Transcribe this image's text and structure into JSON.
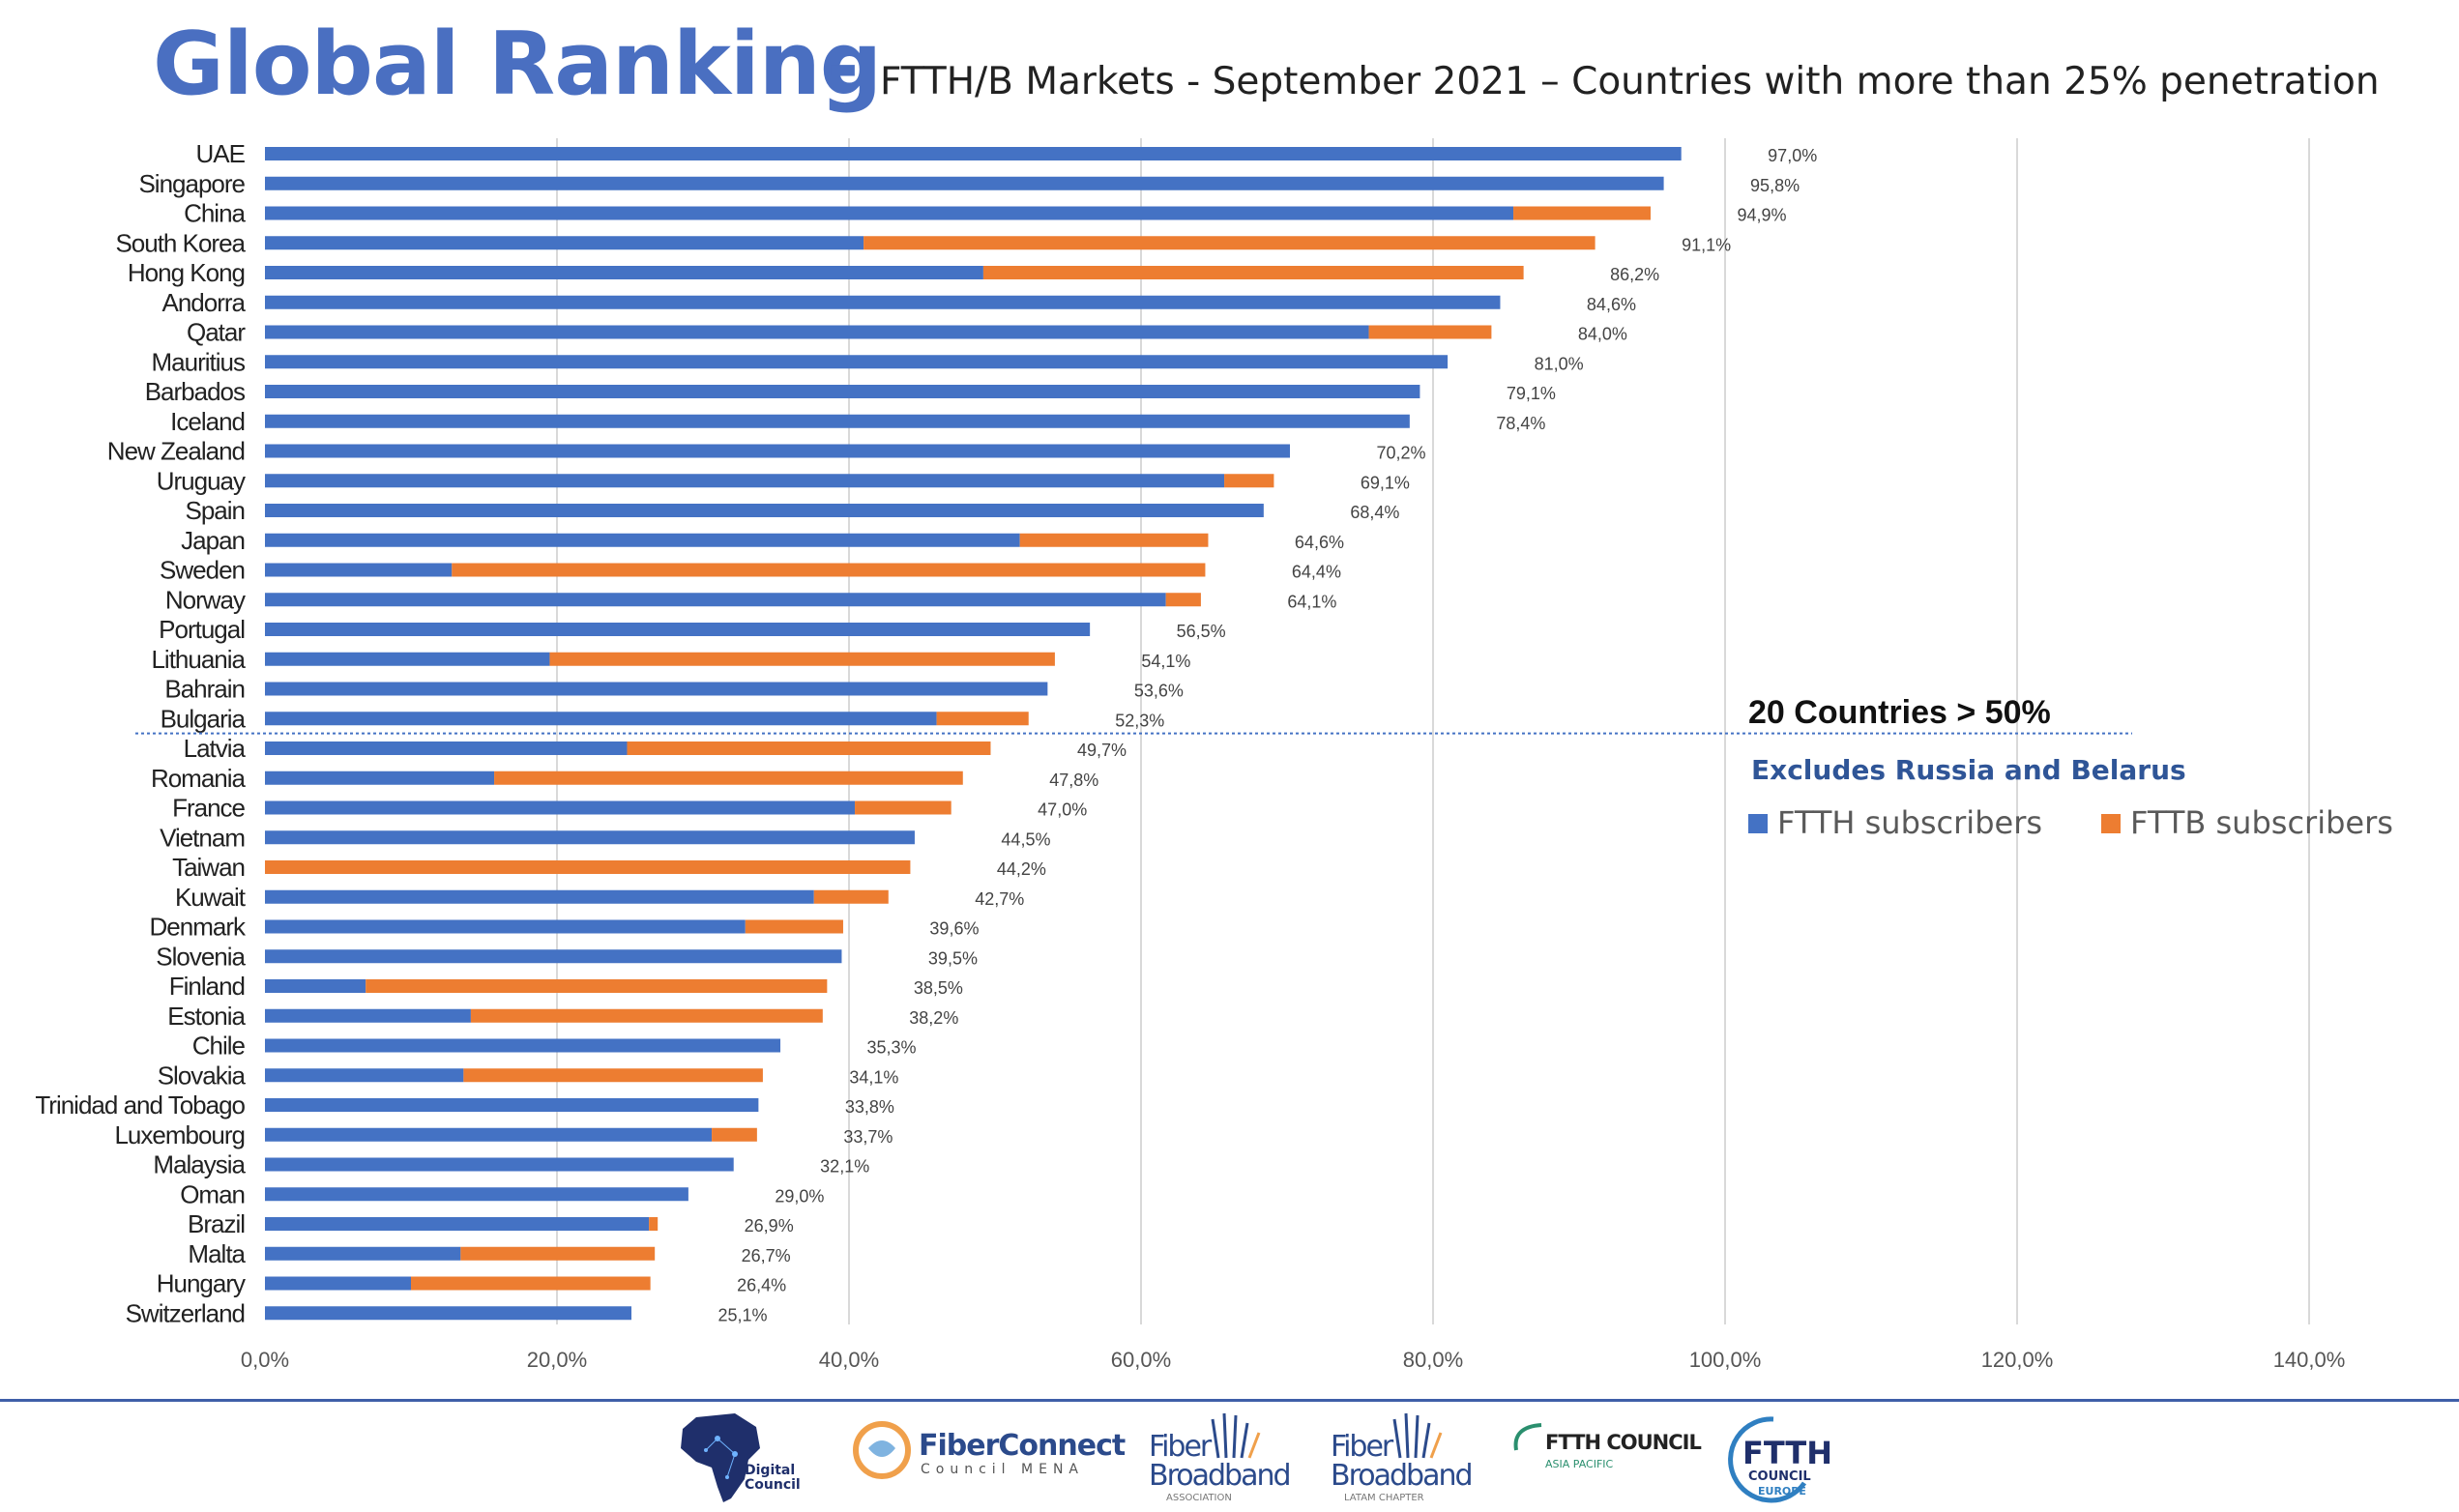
{
  "title": {
    "main": "Global Ranking",
    "separator": "-",
    "subtitle": "FTTH/B Markets - September 2021 – Countries with more than 25% penetration"
  },
  "colors": {
    "ftth": "#4472c4",
    "fttb": "#ed7d31",
    "title": "#4a6fc1",
    "annotation": "#2f5597",
    "grid": "#d9d9d9"
  },
  "chart_data": {
    "type": "bar",
    "orientation": "horizontal",
    "stacked": true,
    "title": "Global Ranking - FTTH/B Markets - September 2021 – Countries with more than 25% penetration",
    "xlim": [
      0,
      140
    ],
    "x_ticks": [
      "0,0%",
      "20,0%",
      "40,0%",
      "60,0%",
      "80,0%",
      "100,0%",
      "120,0%",
      "140,0%"
    ],
    "x_tick_values": [
      0,
      20,
      40,
      60,
      80,
      100,
      120,
      140
    ],
    "grid": "vertical",
    "legend_placement": "right",
    "categories": [
      "UAE",
      "Singapore",
      "China",
      "South Korea",
      "Hong Kong",
      "Andorra",
      "Qatar",
      "Mauritius",
      "Barbados",
      "Iceland",
      "New Zealand",
      "Uruguay",
      "Spain",
      "Japan",
      "Sweden",
      "Norway",
      "Portugal",
      "Lithuania",
      "Bahrain",
      "Bulgaria",
      "Latvia",
      "Romania",
      "France",
      "Vietnam",
      "Taiwan",
      "Kuwait",
      "Denmark",
      "Slovenia",
      "Finland",
      "Estonia",
      "Chile",
      "Slovakia",
      "Trinidad and Tobago",
      "Luxembourg",
      "Malaysia",
      "Oman",
      "Brazil",
      "Malta",
      "Hungary",
      "Switzerland"
    ],
    "series": [
      {
        "name": "FTTH subscribers",
        "values": [
          97.0,
          95.8,
          85.5,
          41.0,
          49.2,
          84.6,
          75.6,
          81.0,
          79.1,
          78.4,
          70.2,
          65.7,
          68.4,
          51.7,
          12.8,
          61.7,
          56.5,
          19.5,
          53.6,
          46.0,
          24.8,
          15.7,
          40.4,
          44.5,
          0.0,
          37.6,
          32.9,
          39.5,
          6.9,
          14.1,
          35.3,
          13.6,
          33.8,
          30.6,
          32.1,
          29.0,
          26.3,
          13.4,
          10.0,
          25.1
        ]
      },
      {
        "name": "FTTB subscribers",
        "values": [
          0.0,
          0.0,
          9.4,
          50.1,
          37.0,
          0.0,
          8.4,
          0.0,
          0.0,
          0.0,
          0.0,
          3.4,
          0.0,
          12.9,
          51.6,
          2.4,
          0.0,
          34.6,
          0.0,
          6.3,
          24.9,
          32.1,
          6.6,
          0.0,
          44.2,
          5.1,
          6.7,
          0.0,
          31.6,
          24.1,
          0.0,
          20.5,
          0.0,
          3.1,
          0.0,
          0.0,
          0.6,
          13.3,
          16.4,
          0.0
        ]
      }
    ],
    "totals": [
      97.0,
      95.8,
      94.9,
      91.1,
      86.2,
      84.6,
      84.0,
      81.0,
      79.1,
      78.4,
      70.2,
      69.1,
      68.4,
      64.6,
      64.4,
      64.1,
      56.5,
      54.1,
      53.6,
      52.3,
      49.7,
      47.8,
      47.0,
      44.5,
      44.2,
      42.7,
      39.6,
      39.5,
      38.5,
      38.2,
      35.3,
      34.1,
      33.8,
      33.7,
      32.1,
      29.0,
      26.9,
      26.7,
      26.4,
      25.1
    ],
    "data_labels": [
      "97,0%",
      "95,8%",
      "94,9%",
      "91,1%",
      "86,2%",
      "84,6%",
      "84,0%",
      "81,0%",
      "79,1%",
      "78,4%",
      "70,2%",
      "69,1%",
      "68,4%",
      "64,6%",
      "64,4%",
      "64,1%",
      "56,5%",
      "54,1%",
      "53,6%",
      "52,3%",
      "49,7%",
      "47,8%",
      "47,0%",
      "44,5%",
      "44,2%",
      "42,7%",
      "39,6%",
      "39,5%",
      "38,5%",
      "38,2%",
      "35,3%",
      "34,1%",
      "33,8%",
      "33,7%",
      "32,1%",
      "29,0%",
      "26,9%",
      "26,7%",
      "26,4%",
      "25,1%"
    ],
    "divider_after_index": 19,
    "annotations": {
      "count": "20 Countries > 50%",
      "note": "Excludes Russia and Belarus"
    },
    "legend": [
      "FTTH subscribers",
      "FTTB subscribers"
    ]
  },
  "footer": {
    "logos": [
      {
        "name": "digital-council-logo",
        "text": "Digital Council"
      },
      {
        "name": "fiberconnect-logo",
        "text": "FiberConnect",
        "sub": "Council MENA"
      },
      {
        "name": "fiber-broadband-association-logo",
        "text": "Fiber Broadband",
        "sub": "ASSOCIATION"
      },
      {
        "name": "fiber-broadband-latam-logo",
        "text": "Fiber Broadband",
        "sub": "LATAM CHAPTER"
      },
      {
        "name": "ftth-council-apac-logo",
        "text": "FTTH COUNCIL",
        "sub": "ASIA PACIFIC"
      },
      {
        "name": "ftth-council-europe-logo",
        "text": "FTTH",
        "sub": "COUNCIL",
        "sub2": "EUROPE"
      }
    ]
  }
}
